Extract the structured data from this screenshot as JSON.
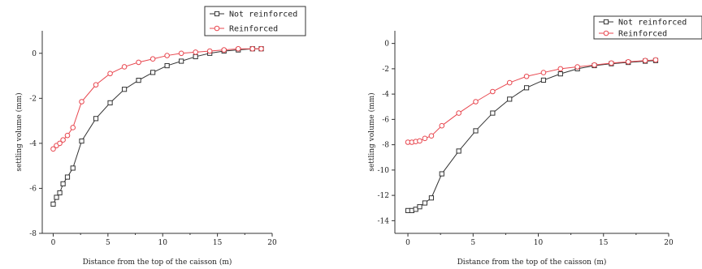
{
  "chart_data": [
    {
      "type": "line",
      "xlabel": "Distance from the top of the caisson (m)",
      "ylabel": "settling volume (mm)",
      "xlim": [
        -1,
        20
      ],
      "ylim": [
        -8,
        1
      ],
      "xticks": [
        "0",
        "5",
        "10",
        "15",
        "20"
      ],
      "yticks": [
        "0",
        "-2",
        "-4",
        "-6",
        "-8"
      ],
      "legend_position": "top-right",
      "series": [
        {
          "name": "Not reinforced",
          "color": "#333333",
          "marker": "square",
          "x": [
            0,
            0.3,
            0.6,
            0.9,
            1.3,
            1.8,
            2.6,
            3.9,
            5.2,
            6.5,
            7.8,
            9.1,
            10.4,
            11.7,
            13.0,
            14.3,
            15.6,
            16.9,
            18.2,
            19.0
          ],
          "y": [
            -6.7,
            -6.4,
            -6.2,
            -5.8,
            -5.5,
            -5.1,
            -3.9,
            -2.9,
            -2.2,
            -1.6,
            -1.2,
            -0.85,
            -0.55,
            -0.35,
            -0.15,
            0.0,
            0.1,
            0.15,
            0.2,
            0.2
          ]
        },
        {
          "name": "Reinforced",
          "color": "#e8474f",
          "marker": "circle",
          "x": [
            0,
            0.3,
            0.6,
            0.9,
            1.3,
            1.8,
            2.6,
            3.9,
            5.2,
            6.5,
            7.8,
            9.1,
            10.4,
            11.7,
            13.0,
            14.3,
            15.6,
            16.9,
            18.2,
            19.0
          ],
          "y": [
            -4.25,
            -4.1,
            -4.0,
            -3.85,
            -3.65,
            -3.3,
            -2.15,
            -1.4,
            -0.9,
            -0.6,
            -0.4,
            -0.25,
            -0.1,
            0.0,
            0.05,
            0.1,
            0.15,
            0.2,
            0.2,
            0.2
          ]
        }
      ]
    },
    {
      "type": "line",
      "xlabel": "Distance from the top of the caisson (m)",
      "ylabel": "settling volume (mm)",
      "xlim": [
        -1,
        20
      ],
      "ylim": [
        -15,
        1
      ],
      "xticks": [
        "0",
        "5",
        "10",
        "15",
        "20"
      ],
      "yticks": [
        "0",
        "-2",
        "-4",
        "-6",
        "-8",
        "-10",
        "-12",
        "-14"
      ],
      "legend_position": "top-right",
      "series": [
        {
          "name": "Not reinforced",
          "color": "#333333",
          "marker": "square",
          "x": [
            0,
            0.3,
            0.6,
            0.9,
            1.3,
            1.8,
            2.6,
            3.9,
            5.2,
            6.5,
            7.8,
            9.1,
            10.4,
            11.7,
            13.0,
            14.3,
            15.6,
            16.9,
            18.2,
            19.0
          ],
          "y": [
            -13.2,
            -13.2,
            -13.1,
            -12.9,
            -12.6,
            -12.2,
            -10.3,
            -8.5,
            -6.9,
            -5.5,
            -4.4,
            -3.5,
            -2.9,
            -2.4,
            -2.0,
            -1.75,
            -1.6,
            -1.5,
            -1.4,
            -1.35
          ]
        },
        {
          "name": "Reinforced",
          "color": "#e8474f",
          "marker": "circle",
          "x": [
            0,
            0.3,
            0.6,
            0.9,
            1.3,
            1.8,
            2.6,
            3.9,
            5.2,
            6.5,
            7.8,
            9.1,
            10.4,
            11.7,
            13.0,
            14.3,
            15.6,
            16.9,
            18.2,
            19.0
          ],
          "y": [
            -7.8,
            -7.8,
            -7.75,
            -7.7,
            -7.5,
            -7.3,
            -6.5,
            -5.5,
            -4.6,
            -3.8,
            -3.1,
            -2.6,
            -2.3,
            -2.0,
            -1.85,
            -1.7,
            -1.55,
            -1.45,
            -1.35,
            -1.3
          ]
        }
      ]
    }
  ]
}
